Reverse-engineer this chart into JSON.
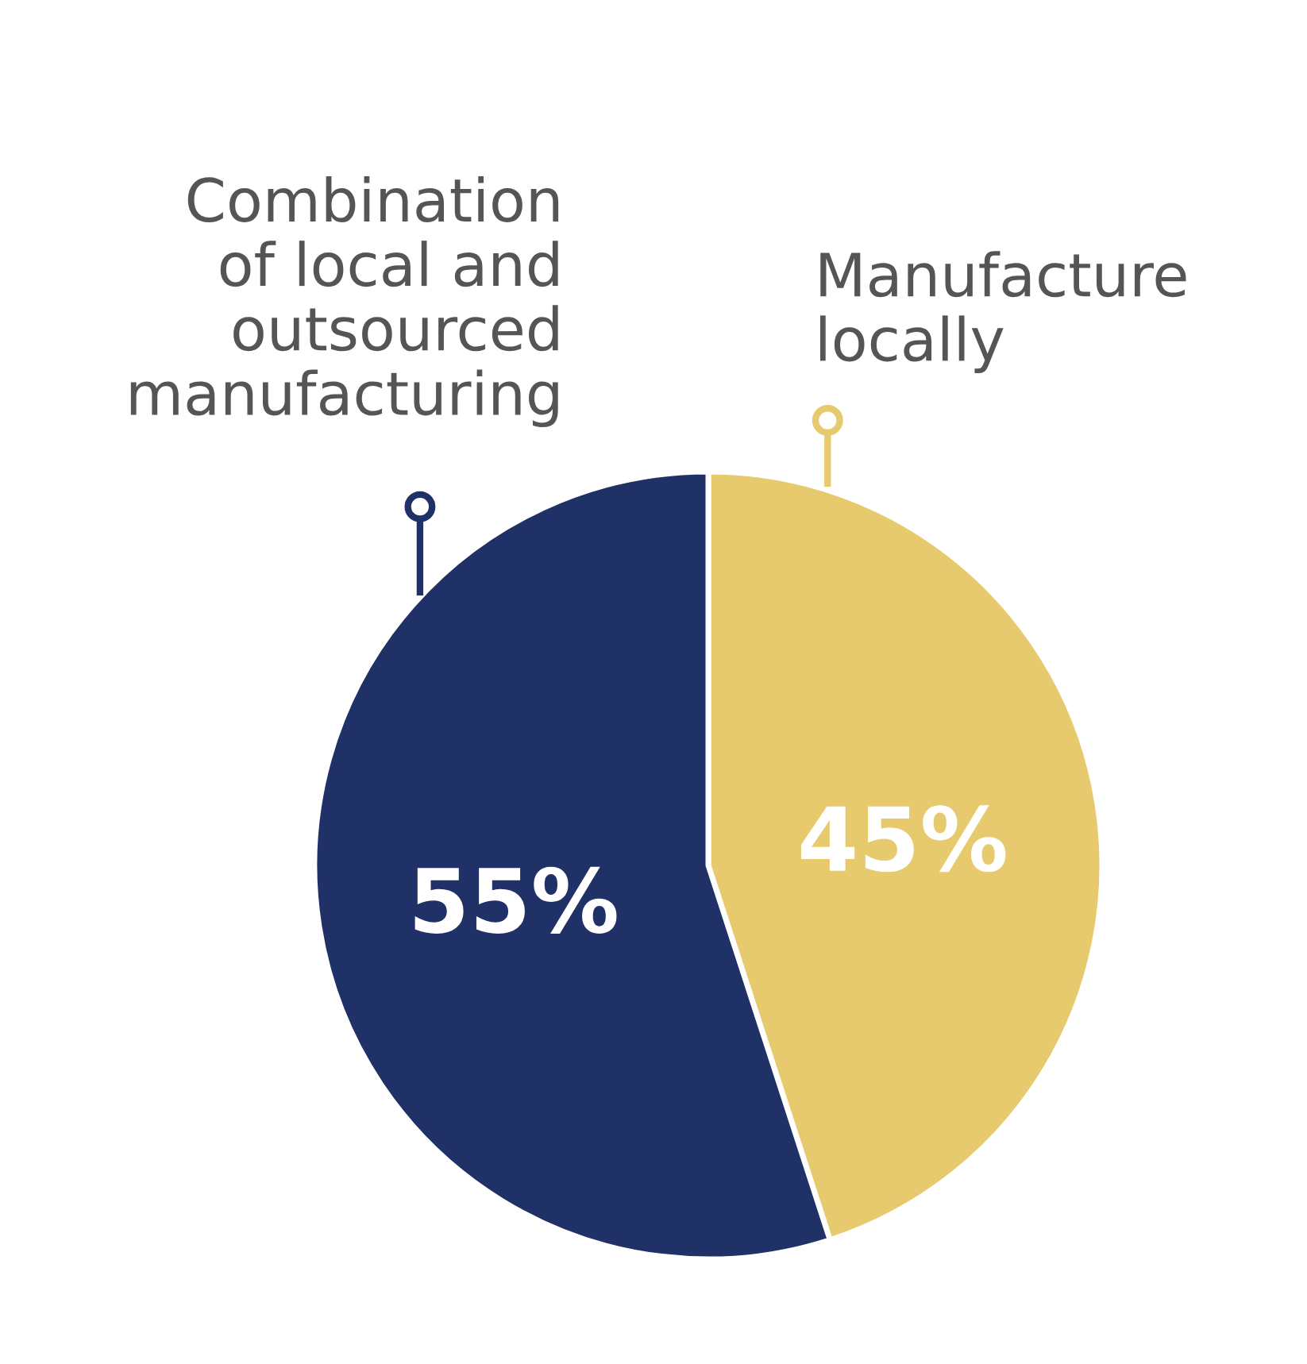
{
  "chart_data": {
    "type": "pie",
    "categories": [
      "Manufacture\nlocally",
      "Combination\nof local and\noutsourced\nmanufacturing"
    ],
    "values": [
      45,
      55
    ],
    "value_labels": [
      "45%",
      "55%"
    ],
    "colors": [
      "#e8ca6e",
      "#1f3166"
    ]
  }
}
